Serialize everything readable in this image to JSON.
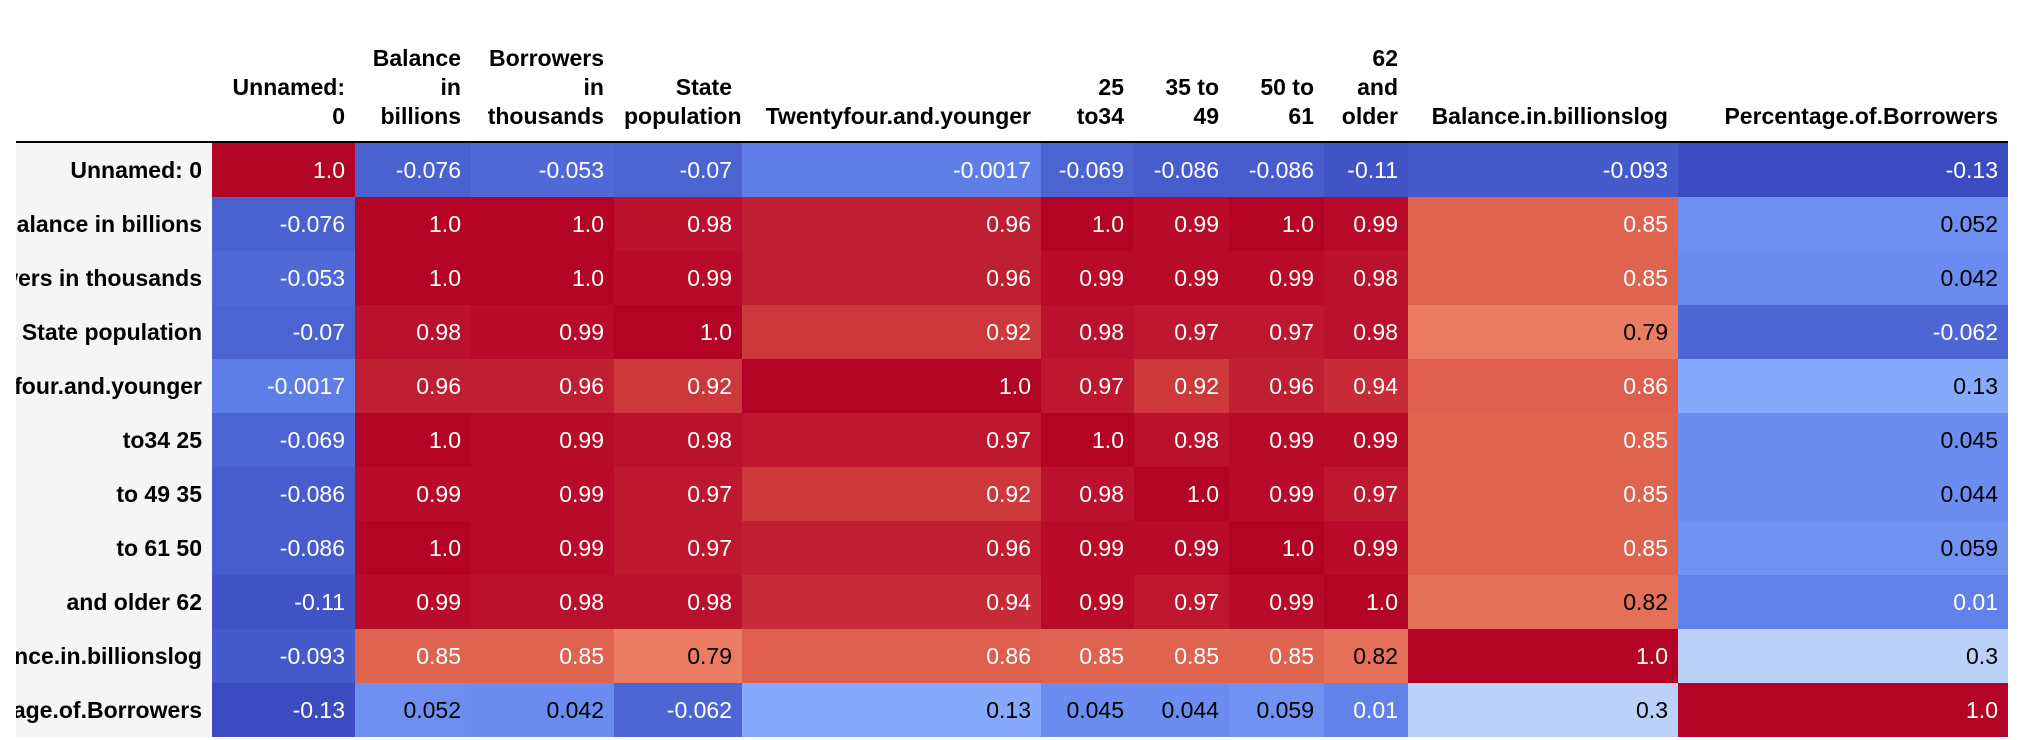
{
  "chart_data": {
    "type": "heatmap",
    "colormap": "coolwarm",
    "vmin": -0.13,
    "vmax": 1.0,
    "columns": [
      "Unnamed:\n0",
      "Balance\nin\nbillions",
      "Borrowers\nin\nthousands",
      "State\npopulation",
      "Twentyfour.and.younger",
      "25\nto34",
      "35 to\n49",
      "50 to\n61",
      "62\nand\nolder",
      "Balance.in.billionslog",
      "Percentage.of.Borrowers"
    ],
    "rows": [
      "Unnamed: 0",
      "Balance in billions",
      "Borrowers in thousands",
      "State population",
      "Twentyfour.and.younger",
      "25 to34",
      "35 to 49",
      "50 to 61",
      "62 and older",
      "Balance.in.billionslog",
      "Percentage.of.Borrowers"
    ],
    "values": [
      [
        "1.0",
        "-0.076",
        "-0.053",
        "-0.07",
        "-0.0017",
        "-0.069",
        "-0.086",
        "-0.086",
        "-0.11",
        "-0.093",
        "-0.13"
      ],
      [
        "-0.076",
        "1.0",
        "1.0",
        "0.98",
        "0.96",
        "1.0",
        "0.99",
        "1.0",
        "0.99",
        "0.85",
        "0.052"
      ],
      [
        "-0.053",
        "1.0",
        "1.0",
        "0.99",
        "0.96",
        "0.99",
        "0.99",
        "0.99",
        "0.98",
        "0.85",
        "0.042"
      ],
      [
        "-0.07",
        "0.98",
        "0.99",
        "1.0",
        "0.92",
        "0.98",
        "0.97",
        "0.97",
        "0.98",
        "0.79",
        "-0.062"
      ],
      [
        "-0.0017",
        "0.96",
        "0.96",
        "0.92",
        "1.0",
        "0.97",
        "0.92",
        "0.96",
        "0.94",
        "0.86",
        "0.13"
      ],
      [
        "-0.069",
        "1.0",
        "0.99",
        "0.98",
        "0.97",
        "1.0",
        "0.98",
        "0.99",
        "0.99",
        "0.85",
        "0.045"
      ],
      [
        "-0.086",
        "0.99",
        "0.99",
        "0.97",
        "0.92",
        "0.98",
        "1.0",
        "0.99",
        "0.97",
        "0.85",
        "0.044"
      ],
      [
        "-0.086",
        "1.0",
        "0.99",
        "0.97",
        "0.96",
        "0.99",
        "0.99",
        "1.0",
        "0.99",
        "0.85",
        "0.059"
      ],
      [
        "-0.11",
        "0.99",
        "0.98",
        "0.98",
        "0.94",
        "0.99",
        "0.97",
        "0.99",
        "1.0",
        "0.82",
        "0.01"
      ],
      [
        "-0.093",
        "0.85",
        "0.85",
        "0.79",
        "0.86",
        "0.85",
        "0.85",
        "0.85",
        "0.82",
        "1.0",
        "0.3"
      ],
      [
        "-0.13",
        "0.052",
        "0.042",
        "-0.062",
        "0.13",
        "0.045",
        "0.044",
        "0.059",
        "0.01",
        "0.3",
        "1.0"
      ]
    ]
  }
}
